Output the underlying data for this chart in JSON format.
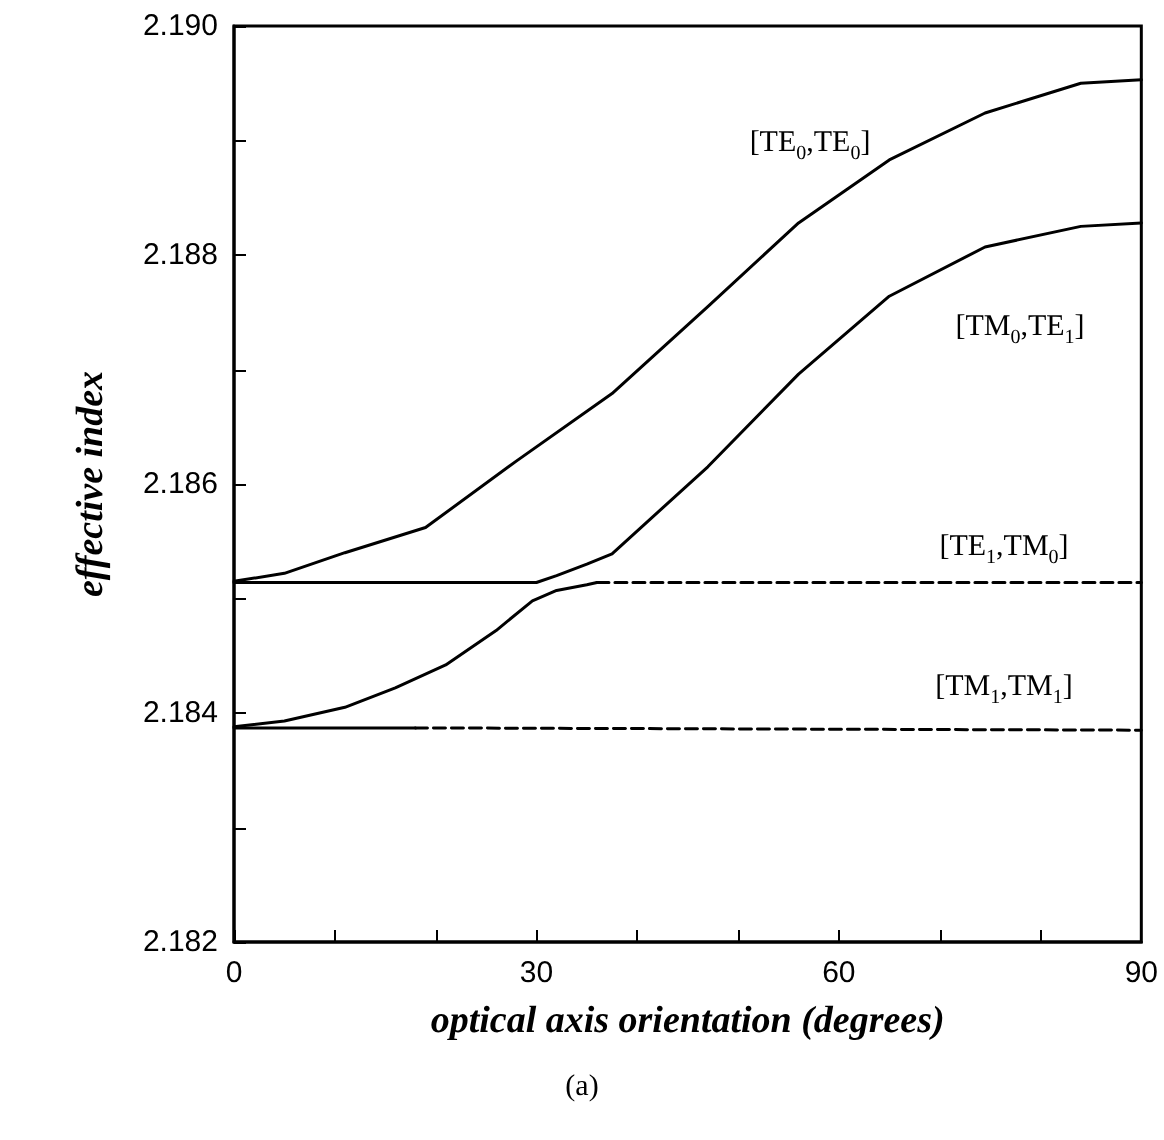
{
  "chart_data": {
    "type": "line",
    "xlabel": "optical axis orientation (degrees)",
    "ylabel": "effective index",
    "xlim": [
      0,
      90
    ],
    "xticks": [
      0,
      {
        "value": 10,
        "label": null
      },
      {
        "value": 20,
        "label": null
      },
      30,
      {
        "value": 40,
        "label": null
      },
      {
        "value": 50,
        "label": null
      },
      60,
      {
        "value": 70,
        "label": null
      },
      {
        "value": 80,
        "label": null
      },
      90
    ],
    "ylim": [
      2.182,
      2.19
    ],
    "yticks": [
      {
        "value": 2.182,
        "label": "2.182"
      },
      {
        "value": 2.183,
        "label": null
      },
      {
        "value": 2.184,
        "label": "2.184"
      },
      {
        "value": 2.185,
        "label": null
      },
      {
        "value": 2.186,
        "label": "2.186"
      },
      {
        "value": 2.187,
        "label": null
      },
      {
        "value": 2.188,
        "label": "2.188"
      },
      {
        "value": 2.189,
        "label": null
      },
      {
        "value": 2.19,
        "label": "2.190"
      }
    ],
    "grid": false,
    "marker": "none",
    "series": [
      {
        "color": "#000000",
        "line_style": "solid",
        "x": [
          0,
          5,
          11,
          19,
          28,
          37.5,
          47,
          56,
          65,
          74.5,
          84,
          90
        ],
        "values": [
          2.18515,
          2.18522,
          2.1854,
          2.18562,
          2.1862,
          2.18679,
          2.18755,
          2.18828,
          2.18883,
          2.18924,
          2.1895,
          2.18953
        ]
      },
      {
        "color": "#000000",
        "line_style": "solid",
        "x": [
          0,
          10,
          20,
          30,
          32,
          35,
          37.5,
          47,
          56,
          65,
          74.5,
          84,
          90
        ],
        "values": [
          2.18514,
          2.18514,
          2.18514,
          2.18514,
          2.1852,
          2.1853,
          2.18539,
          2.18615,
          2.18696,
          2.18764,
          2.18807,
          2.18825,
          2.18828
        ]
      },
      {
        "color": "#000000",
        "line_style": "solid",
        "x": [
          0,
          5,
          11,
          16,
          21,
          26,
          29.6,
          32,
          35,
          36
        ],
        "values": [
          2.18388,
          2.18393,
          2.18405,
          2.18422,
          2.18442,
          2.18472,
          2.18498,
          2.18507,
          2.18512,
          2.18514
        ]
      },
      {
        "color": "#000000",
        "line_style": "dashed",
        "x": [
          36,
          90
        ],
        "values": [
          2.18514,
          2.18514
        ]
      },
      {
        "color": "#000000",
        "line_style": "solid",
        "x": [
          0,
          18
        ],
        "values": [
          2.18387,
          2.18387
        ]
      },
      {
        "color": "#000000",
        "line_style": "dashed",
        "x": [
          18,
          90
        ],
        "values": [
          2.18387,
          2.18385
        ]
      }
    ],
    "annotations": [
      "[TE$_{0}$,TE$_{0}$]",
      "[TM$_{0}$,TE$_{1}$]",
      "[TE$_{1}$,TM$_{0}$]",
      "[TM$_{1}$,TM$_{1}$]",
      "(a)"
    ]
  }
}
